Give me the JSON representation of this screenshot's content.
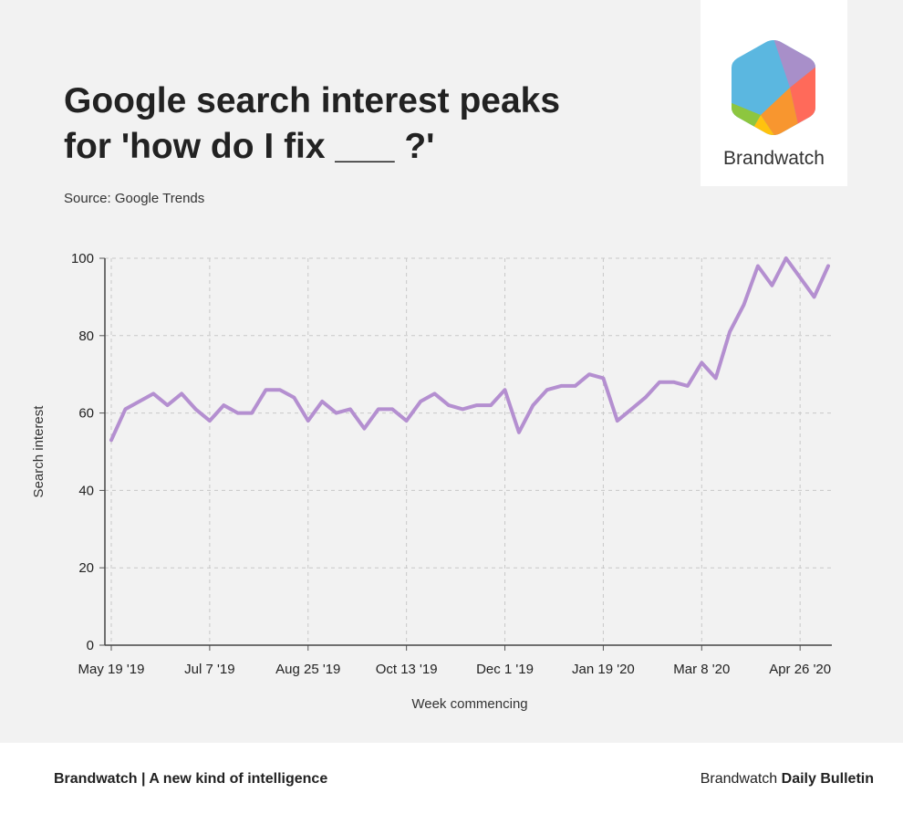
{
  "header": {
    "title": "Google search interest peaks\nfor 'how do I fix ___ ?'",
    "source": "Source: Google Trends"
  },
  "logo": {
    "name": "Brandwatch",
    "colors": [
      "#5bb7e0",
      "#a88fc9",
      "#ff6a5a",
      "#f8962f",
      "#ffc20e",
      "#8dc63f"
    ]
  },
  "footer": {
    "left": "Brandwatch | A new kind of intelligence",
    "right_prefix": "Brandwatch ",
    "right_bold": "Daily Bulletin"
  },
  "chart_data": {
    "type": "line",
    "xlabel": "Week commencing",
    "ylabel": "Search interest",
    "ylim": [
      0,
      100
    ],
    "yticks": [
      0,
      20,
      40,
      60,
      80,
      100
    ],
    "xticks": [
      {
        "label": "May 19 '19",
        "week": 0
      },
      {
        "label": "Jul 7 '19",
        "week": 7
      },
      {
        "label": "Aug 25 '19",
        "week": 14
      },
      {
        "label": "Oct 13 '19",
        "week": 21
      },
      {
        "label": "Dec 1 '19",
        "week": 28
      },
      {
        "label": "Jan 19 '20",
        "week": 35
      },
      {
        "label": "Mar 8 '20",
        "week": 42
      },
      {
        "label": "Apr 26 '20",
        "week": 49
      }
    ],
    "grid": true,
    "line_color": "#b48fd0",
    "series": [
      {
        "values": [
          53,
          61,
          63,
          65,
          62,
          65,
          61,
          58,
          62,
          60,
          60,
          66,
          66,
          64,
          58,
          63,
          60,
          61,
          56,
          61,
          61,
          58,
          63,
          65,
          62,
          61,
          62,
          62,
          66,
          55,
          62,
          66,
          67,
          67,
          70,
          69,
          58,
          61,
          64,
          68,
          68,
          67,
          73,
          69,
          81,
          88,
          98,
          93,
          100,
          95,
          90,
          98
        ]
      }
    ]
  }
}
